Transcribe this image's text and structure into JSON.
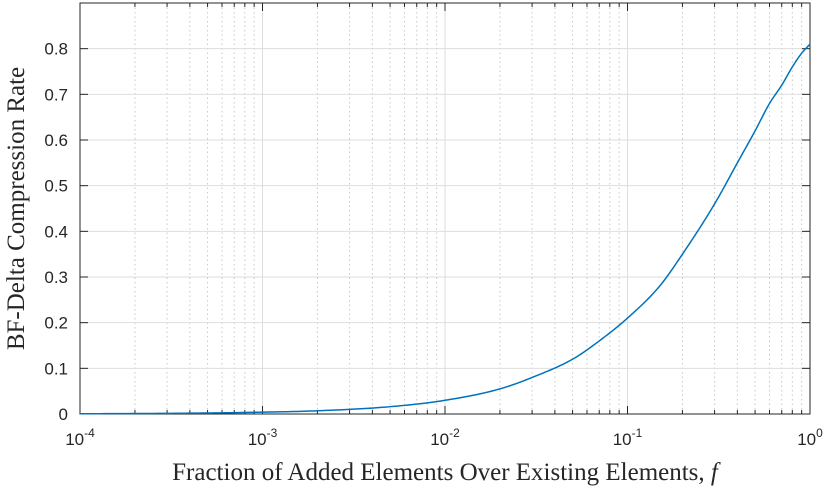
{
  "chart_data": {
    "type": "line",
    "xlabel": "Fraction of Added Elements Over Existing Elements, ",
    "xlabel_symbol": "f",
    "ylabel": "BF-Delta Compression Rate",
    "x_scale": "log",
    "xlim": [
      0.0001,
      1
    ],
    "ylim": [
      0,
      0.9
    ],
    "grid": true,
    "x_ticks": [
      {
        "base": "10",
        "exp": "-4",
        "value": 0.0001
      },
      {
        "base": "10",
        "exp": "-3",
        "value": 0.001
      },
      {
        "base": "10",
        "exp": "-2",
        "value": 0.01
      },
      {
        "base": "10",
        "exp": "-1",
        "value": 0.1
      },
      {
        "base": "10",
        "exp": "0",
        "value": 1
      }
    ],
    "y_ticks": [
      "0",
      "0.1",
      "0.2",
      "0.3",
      "0.4",
      "0.5",
      "0.6",
      "0.7",
      "0.8"
    ],
    "line_color": "#0072BD",
    "series": [
      {
        "x": [
          0.0001,
          0.0002,
          0.0005,
          0.001,
          0.002,
          0.005,
          0.01,
          0.02,
          0.03,
          0.05,
          0.07,
          0.1,
          0.15,
          0.2,
          0.3,
          0.4,
          0.5,
          0.6,
          0.7,
          0.8,
          0.9,
          1.0
        ],
        "y": [
          0.0005,
          0.001,
          0.0022,
          0.004,
          0.007,
          0.016,
          0.03,
          0.055,
          0.08,
          0.12,
          0.16,
          0.21,
          0.28,
          0.35,
          0.46,
          0.55,
          0.62,
          0.68,
          0.72,
          0.76,
          0.79,
          0.81
        ]
      }
    ]
  }
}
